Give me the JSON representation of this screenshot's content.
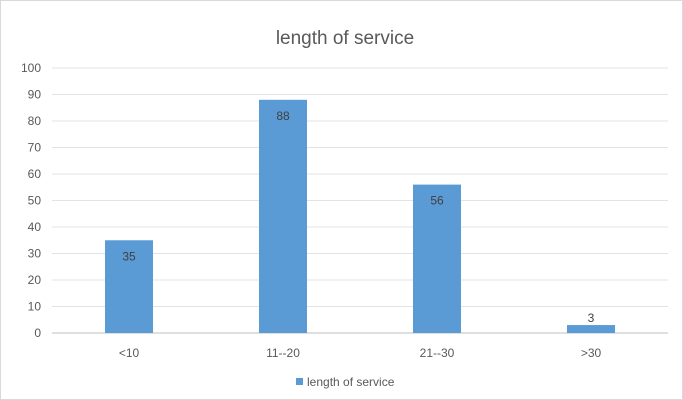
{
  "chart_data": {
    "type": "bar",
    "title": "length of service",
    "xlabel": "",
    "ylabel": "",
    "categories": [
      "<10",
      "11--20",
      "21--30",
      ">30"
    ],
    "series": [
      {
        "name": "length of service",
        "values": [
          35,
          88,
          56,
          3
        ],
        "color": "#5b9bd5"
      }
    ],
    "ylim": [
      0,
      100
    ],
    "yticks": [
      "0",
      "10",
      "20",
      "30",
      "40",
      "50",
      "60",
      "70",
      "80",
      "90",
      "100"
    ],
    "grid": true,
    "legend": "bottom",
    "data_labels": [
      "35",
      "88",
      "56",
      "3"
    ]
  }
}
